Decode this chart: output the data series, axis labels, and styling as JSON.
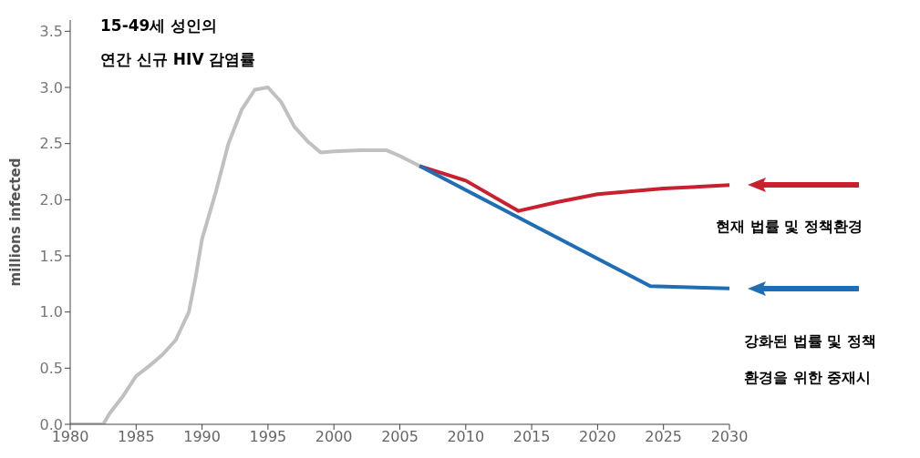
{
  "chart_data": {
    "type": "line",
    "title": "15-49세 성인의\n연간 신규 HIV 감염률",
    "ylabel": "millions infected",
    "xlim": [
      1980,
      2030
    ],
    "xticks": [
      1980,
      1985,
      1990,
      1995,
      2000,
      2005,
      2010,
      2015,
      2020,
      2025,
      2030
    ],
    "ylim": [
      0,
      3.6
    ],
    "yticks": [
      {
        "value": 0,
        "label": "0.0"
      },
      {
        "value": 0.5,
        "label": "0.5"
      },
      {
        "value": 1,
        "label": "1.0"
      },
      {
        "value": 1.5,
        "label": "1.5"
      },
      {
        "value": 2,
        "label": "2.0"
      },
      {
        "value": 2.5,
        "label": "2.5"
      },
      {
        "value": 3,
        "label": "3.0"
      },
      {
        "value": 3.5,
        "label": "3.5"
      }
    ],
    "marker": "none",
    "series": [
      {
        "color": "#c0c0c0",
        "x": [
          1980,
          1982.5,
          1983,
          1984,
          1985,
          1986,
          1987,
          1988,
          1989,
          1989.5,
          1990,
          1991,
          1992,
          1993,
          1994,
          1995,
          1996,
          1997,
          1998,
          1999,
          2000,
          2002,
          2004,
          2005,
          2006.5
        ],
        "values": [
          0,
          0,
          0.1,
          0.25,
          0.43,
          0.52,
          0.62,
          0.75,
          1.0,
          1.3,
          1.65,
          2.05,
          2.5,
          2.8,
          2.98,
          3.0,
          2.87,
          2.65,
          2.52,
          2.42,
          2.43,
          2.44,
          2.44,
          2.39,
          2.3
        ]
      },
      {
        "name": "현재 법률 및 정책환경",
        "color": "#c8202e",
        "x": [
          2006.5,
          2010,
          2014,
          2017,
          2020,
          2025,
          2030
        ],
        "values": [
          2.3,
          2.17,
          1.9,
          1.98,
          2.05,
          2.1,
          2.13
        ]
      },
      {
        "name": "강화된 법률 및 정책\n환경을 위한 중재시",
        "color": "#1f6db5",
        "x": [
          2006.5,
          2024,
          2030
        ],
        "values": [
          2.3,
          1.23,
          1.21
        ]
      }
    ]
  }
}
